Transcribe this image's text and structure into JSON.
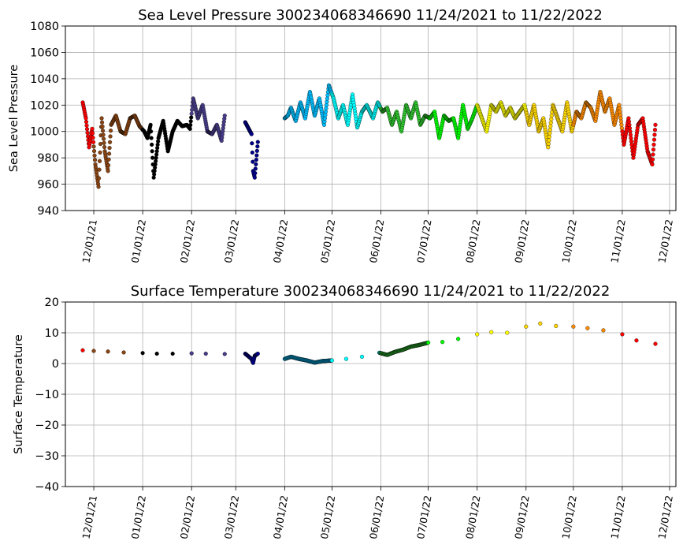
{
  "chart_data": [
    {
      "type": "scatter",
      "title": "Sea Level Pressure 300234068346690  11/24/2021 to 11/22/2022",
      "xlabel": "",
      "ylabel": "Sea Level Pressure",
      "ylim": [
        940,
        1080
      ],
      "yticks": [
        940,
        960,
        980,
        1000,
        1020,
        1040,
        1060,
        1080
      ],
      "xlim": [
        "2021-11-13",
        "2022-12-05"
      ],
      "xticks": [
        "12/01/21",
        "01/01/22",
        "02/01/22",
        "03/01/22",
        "04/01/22",
        "05/01/22",
        "06/01/22",
        "07/01/22",
        "08/01/22",
        "09/01/22",
        "10/01/22",
        "11/01/22",
        "12/01/22"
      ],
      "grid": true,
      "colors_by_month": {
        "2021-11": "#ff0000",
        "2021-12": "#8b4513",
        "2022-01": "#000000",
        "2022-02": "#483d8b",
        "2022-03": "#00008b",
        "2022-04": "#00bfff",
        "2022-05": "#00ffff",
        "2022-06": "#32cd32",
        "2022-07": "#00ff00",
        "2022-08": "#ffff00",
        "2022-09": "#ffd700",
        "2022-10": "#ff8c00",
        "2022-11": "#ff0000"
      },
      "x": [
        "2021-11-24",
        "2021-11-26",
        "2021-11-28",
        "2021-11-30",
        "2021-12-02",
        "2021-12-04",
        "2021-12-06",
        "2021-12-08",
        "2021-12-10",
        "2021-12-12",
        "2021-12-15",
        "2021-12-18",
        "2021-12-21",
        "2021-12-24",
        "2021-12-27",
        "2021-12-30",
        "2022-01-02",
        "2022-01-04",
        "2022-01-06",
        "2022-01-08",
        "2022-01-11",
        "2022-01-14",
        "2022-01-17",
        "2022-01-20",
        "2022-01-23",
        "2022-01-26",
        "2022-01-29",
        "2022-01-31",
        "2022-02-02",
        "2022-02-05",
        "2022-02-08",
        "2022-02-11",
        "2022-02-14",
        "2022-02-17",
        "2022-02-20",
        "2022-02-22",
        "2022-03-07",
        "2022-03-11",
        "2022-03-12",
        "2022-03-13",
        "2022-03-15",
        "2022-04-01",
        "2022-04-03",
        "2022-04-05",
        "2022-04-08",
        "2022-04-11",
        "2022-04-14",
        "2022-04-17",
        "2022-04-20",
        "2022-04-23",
        "2022-04-26",
        "2022-04-29",
        "2022-05-02",
        "2022-05-05",
        "2022-05-08",
        "2022-05-11",
        "2022-05-14",
        "2022-05-17",
        "2022-05-20",
        "2022-05-23",
        "2022-05-27",
        "2022-05-30",
        "2022-06-02",
        "2022-06-05",
        "2022-06-08",
        "2022-06-11",
        "2022-06-14",
        "2022-06-17",
        "2022-06-20",
        "2022-06-23",
        "2022-06-26",
        "2022-06-29",
        "2022-07-02",
        "2022-07-05",
        "2022-07-08",
        "2022-07-11",
        "2022-07-14",
        "2022-07-17",
        "2022-07-20",
        "2022-07-23",
        "2022-07-26",
        "2022-07-29",
        "2022-08-01",
        "2022-08-04",
        "2022-08-07",
        "2022-08-10",
        "2022-08-13",
        "2022-08-16",
        "2022-08-19",
        "2022-08-22",
        "2022-08-25",
        "2022-08-28",
        "2022-08-31",
        "2022-09-03",
        "2022-09-06",
        "2022-09-09",
        "2022-09-12",
        "2022-09-15",
        "2022-09-18",
        "2022-09-21",
        "2022-09-24",
        "2022-09-27",
        "2022-09-30",
        "2022-10-03",
        "2022-10-06",
        "2022-10-09",
        "2022-10-12",
        "2022-10-15",
        "2022-10-18",
        "2022-10-21",
        "2022-10-24",
        "2022-10-27",
        "2022-10-30",
        "2022-11-02",
        "2022-11-05",
        "2022-11-08",
        "2022-11-11",
        "2022-11-14",
        "2022-11-17",
        "2022-11-20",
        "2022-11-22"
      ],
      "values": [
        1022,
        1010,
        988,
        1002,
        975,
        958,
        1010,
        985,
        970,
        1005,
        1012,
        1000,
        998,
        1010,
        1012,
        1004,
        1000,
        995,
        1005,
        965,
        995,
        1008,
        985,
        1000,
        1008,
        1004,
        1005,
        1002,
        1025,
        1010,
        1020,
        1000,
        998,
        1005,
        993,
        1012,
        1007,
        998,
        970,
        965,
        992,
        1010,
        1012,
        1018,
        1008,
        1022,
        1010,
        1030,
        1012,
        1025,
        1005,
        1035,
        1025,
        1010,
        1020,
        1005,
        1028,
        1003,
        1015,
        1020,
        1010,
        1022,
        1015,
        1018,
        1005,
        1015,
        1000,
        1020,
        1010,
        1022,
        1005,
        1012,
        1010,
        1015,
        995,
        1012,
        1008,
        1010,
        995,
        1020,
        1002,
        1010,
        1020,
        1010,
        1000,
        1020,
        1015,
        1022,
        1012,
        1018,
        1010,
        1015,
        1020,
        1005,
        1020,
        1000,
        1010,
        988,
        1020,
        1010,
        1000,
        1022,
        1000,
        1015,
        1010,
        1022,
        1018,
        1008,
        1030,
        1015,
        1025,
        1005,
        1020,
        990,
        1010,
        980,
        1005,
        1010,
        985,
        975,
        1005
      ],
      "series": [
        {
          "name": "",
          "values": []
        }
      ]
    },
    {
      "type": "scatter",
      "title": "Surface Temperature 300234068346690  11/24/2021 to 11/22/2022",
      "xlabel": "",
      "ylabel": "Surface Temperature",
      "ylim": [
        -40,
        20
      ],
      "yticks": [
        -40,
        -30,
        -20,
        -10,
        0,
        10,
        20
      ],
      "xlim": [
        "2021-11-13",
        "2022-12-05"
      ],
      "xticks": [
        "12/01/21",
        "01/01/22",
        "02/01/22",
        "03/01/22",
        "04/01/22",
        "05/01/22",
        "06/01/22",
        "07/01/22",
        "08/01/22",
        "09/01/22",
        "10/01/22",
        "11/01/22",
        "12/01/22"
      ],
      "grid": true,
      "x": [
        "2021-11-24",
        "2021-12-01",
        "2021-12-10",
        "2021-12-20",
        "2022-01-01",
        "2022-01-10",
        "2022-01-20",
        "2022-02-01",
        "2022-02-10",
        "2022-02-22",
        "2022-03-07",
        "2022-03-11",
        "2022-03-12",
        "2022-03-13",
        "2022-03-15",
        "2022-04-01",
        "2022-04-05",
        "2022-04-10",
        "2022-04-15",
        "2022-04-20",
        "2022-04-25",
        "2022-05-01",
        "2022-05-10",
        "2022-05-20",
        "2022-05-31",
        "2022-06-05",
        "2022-06-10",
        "2022-06-15",
        "2022-06-20",
        "2022-06-25",
        "2022-07-01",
        "2022-07-10",
        "2022-07-20",
        "2022-08-01",
        "2022-08-10",
        "2022-08-20",
        "2022-09-01",
        "2022-09-10",
        "2022-09-20",
        "2022-10-01",
        "2022-10-10",
        "2022-10-20",
        "2022-11-01",
        "2022-11-10",
        "2022-11-22"
      ],
      "values": [
        4.3,
        4.1,
        3.9,
        3.6,
        3.4,
        3.2,
        3.2,
        3.3,
        3.2,
        3.1,
        3.2,
        1.5,
        0.2,
        2.5,
        3.2,
        1.5,
        2.2,
        1.5,
        1.0,
        0.3,
        0.8,
        1.0,
        1.5,
        2.2,
        3.5,
        2.8,
        3.8,
        4.5,
        5.5,
        6.0,
        6.8,
        7.0,
        8.0,
        9.5,
        10.2,
        10.0,
        12.0,
        13.0,
        12.2,
        12.0,
        11.5,
        10.8,
        9.5,
        7.5,
        6.4
      ],
      "series": [
        {
          "name": "",
          "values": []
        }
      ]
    }
  ]
}
